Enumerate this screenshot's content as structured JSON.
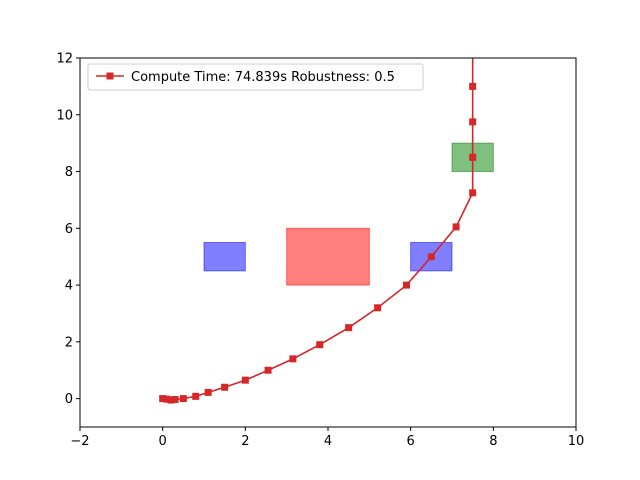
{
  "chart_data": {
    "type": "line",
    "xlim": [
      -2,
      10
    ],
    "ylim": [
      -1,
      12
    ],
    "x_ticks": [
      -2,
      0,
      2,
      4,
      6,
      8,
      10
    ],
    "y_ticks": [
      0,
      2,
      4,
      6,
      8,
      10,
      12
    ],
    "grid": false,
    "legend_position": "top-left",
    "series": [
      {
        "name": "Compute Time: 74.839s  Robustness: 0.5",
        "color": "#d62728",
        "marker": "square",
        "x": [
          0.0,
          0.1,
          0.2,
          0.3,
          0.5,
          0.8,
          1.1,
          1.5,
          2.0,
          2.55,
          3.15,
          3.8,
          4.5,
          5.2,
          5.9,
          6.5,
          7.1,
          7.5,
          7.5,
          7.5,
          7.5,
          7.5
        ],
        "y": [
          0.0,
          -0.02,
          -0.05,
          -0.03,
          0.0,
          0.08,
          0.22,
          0.4,
          0.65,
          1.0,
          1.4,
          1.9,
          2.5,
          3.2,
          4.0,
          5.0,
          6.05,
          7.25,
          8.5,
          9.75,
          11.0,
          12.0
        ],
        "marker_count": 21
      }
    ],
    "regions": [
      {
        "name": "obstacle-left",
        "color": "#0000ff",
        "opacity": 0.5,
        "x": [
          1,
          2
        ],
        "y": [
          4.5,
          5.5
        ]
      },
      {
        "name": "obstacle-center",
        "color": "#ff0000",
        "opacity": 0.5,
        "x": [
          3,
          5
        ],
        "y": [
          4,
          6
        ]
      },
      {
        "name": "obstacle-right",
        "color": "#0000ff",
        "opacity": 0.5,
        "x": [
          6,
          7
        ],
        "y": [
          4.5,
          5.5
        ]
      },
      {
        "name": "goal",
        "color": "#008000",
        "opacity": 0.5,
        "x": [
          7,
          8
        ],
        "y": [
          8,
          9
        ]
      }
    ]
  }
}
